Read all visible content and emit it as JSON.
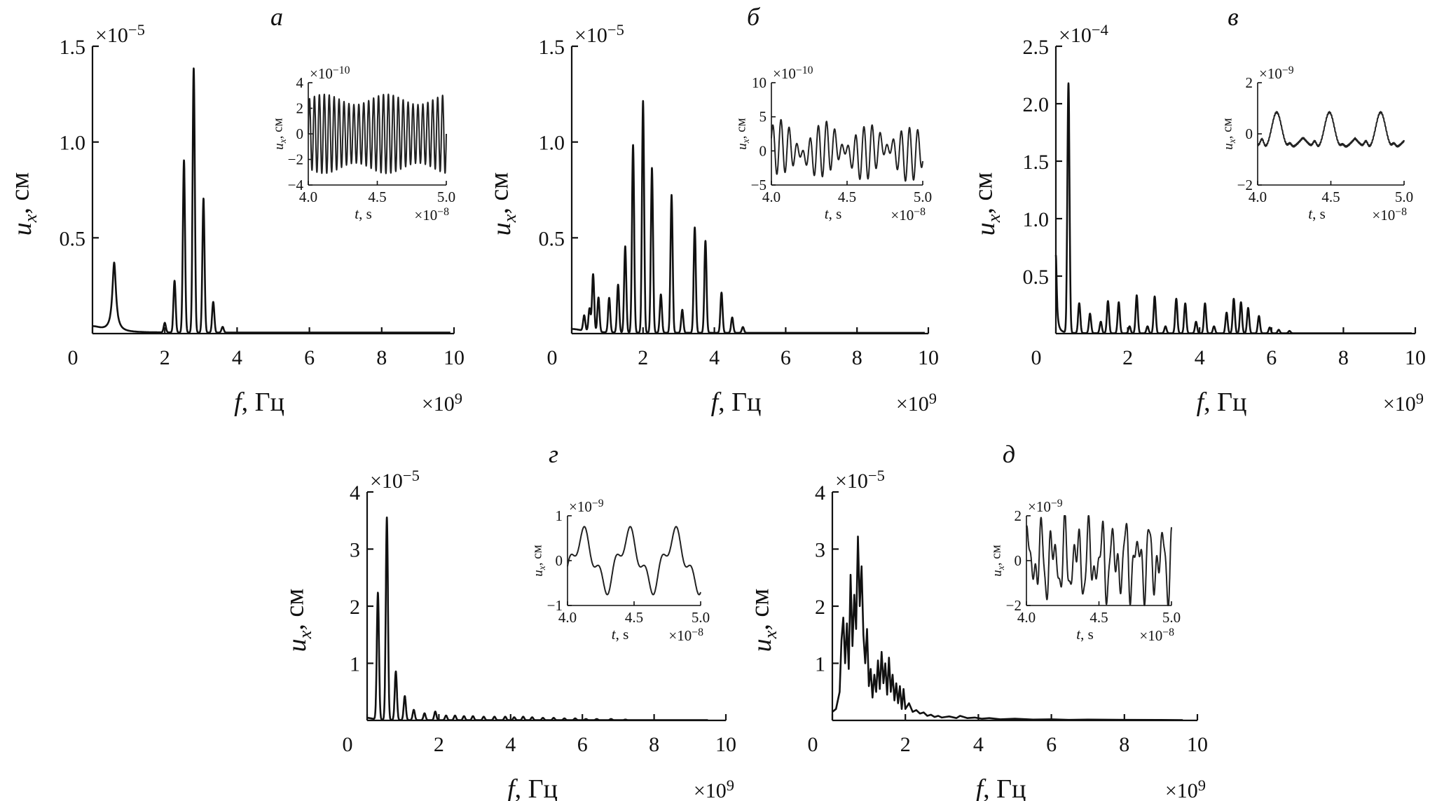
{
  "figure": {
    "description_units": "All chart values in data units (frequency in Hz, amplitude in cm, time in s)"
  },
  "chart_data": [
    {
      "id": "a",
      "type": "line",
      "panel_label": "а",
      "xlabel": "f, Гц",
      "ylabel": "u",
      "ylabel_sub": "x",
      "ylabel_unit": ", см",
      "x_multiplier": "×10",
      "x_multiplier_exp": "9",
      "y_multiplier": "×10",
      "y_multiplier_exp": "−5",
      "xlim": [
        0,
        10
      ],
      "ylim": [
        0,
        1.5
      ],
      "x_ticks": [
        0,
        2,
        4,
        6,
        8,
        10
      ],
      "x_tick_labels": [
        "0",
        "2",
        "4",
        "6",
        "8",
        "10"
      ],
      "y_ticks": [
        0.5,
        1.0,
        1.5
      ],
      "y_tick_labels": [
        "0.5",
        "1.0",
        "1.5"
      ],
      "x_end": 9.9,
      "baseline": 0.005,
      "lorentz_peaks": [
        [
          0.6,
          0.36,
          0.06
        ],
        [
          0.0,
          0.03,
          0.3
        ]
      ],
      "peaks": [
        [
          2.0,
          0.05
        ],
        [
          2.27,
          0.27
        ],
        [
          2.53,
          0.9
        ],
        [
          2.8,
          1.38
        ],
        [
          3.07,
          0.7
        ],
        [
          3.34,
          0.16
        ],
        [
          3.6,
          0.03
        ]
      ],
      "peak_width": 0.03,
      "inset": {
        "xlabel": "t",
        "xlabel_unit": ", s",
        "ylabel": "u",
        "ylabel_sub": "x",
        "ylabel_unit": ", см",
        "x_multiplier": "×10",
        "x_multiplier_exp": "−8",
        "y_multiplier": "×10",
        "y_multiplier_exp": "−10",
        "xlim": [
          4.0,
          5.0
        ],
        "ylim": [
          -4,
          4
        ],
        "x_ticks": [
          4.0,
          4.5,
          5.0
        ],
        "x_tick_labels": [
          "4.0",
          "4.5",
          "5.0"
        ],
        "y_ticks": [
          -4,
          -2,
          0,
          2,
          4
        ],
        "y_tick_labels": [
          "−4",
          "−2",
          "0",
          "2",
          "4"
        ],
        "signal": {
          "components": [
            [
              2.7,
              28,
              0.0
            ]
          ],
          "envelope": [
            0.15,
            2.2
          ]
        }
      }
    },
    {
      "id": "b",
      "type": "line",
      "panel_label": "б",
      "xlabel": "f, Гц",
      "ylabel": "u",
      "ylabel_sub": "x",
      "ylabel_unit": ", см",
      "x_multiplier": "×10",
      "x_multiplier_exp": "9",
      "y_multiplier": "×10",
      "y_multiplier_exp": "−5",
      "xlim": [
        0,
        10
      ],
      "ylim": [
        0,
        1.5
      ],
      "x_ticks": [
        0,
        2,
        4,
        6,
        8,
        10
      ],
      "x_tick_labels": [
        "0",
        "2",
        "4",
        "6",
        "8",
        "10"
      ],
      "y_ticks": [
        0.5,
        1.0,
        1.5
      ],
      "y_tick_labels": [
        "0.5",
        "1.0",
        "1.5"
      ],
      "x_end": 9.9,
      "baseline": 0.004,
      "lorentz_peaks": [
        [
          0.0,
          0.02,
          0.4
        ]
      ],
      "peaks": [
        [
          0.35,
          0.08
        ],
        [
          0.5,
          0.12
        ],
        [
          0.6,
          0.3
        ],
        [
          0.75,
          0.18
        ],
        [
          1.05,
          0.18
        ],
        [
          1.3,
          0.25
        ],
        [
          1.5,
          0.45
        ],
        [
          1.72,
          0.98
        ],
        [
          2.0,
          1.21
        ],
        [
          2.25,
          0.86
        ],
        [
          2.5,
          0.2
        ],
        [
          2.8,
          0.72
        ],
        [
          3.1,
          0.12
        ],
        [
          3.45,
          0.55
        ],
        [
          3.75,
          0.48
        ],
        [
          4.2,
          0.21
        ],
        [
          4.5,
          0.08
        ],
        [
          4.8,
          0.03
        ]
      ],
      "peak_width": 0.03,
      "inset": {
        "xlabel": "t",
        "xlabel_unit": ", s",
        "ylabel": "u",
        "ylabel_sub": "x",
        "ylabel_unit": ", см",
        "x_multiplier": "×10",
        "x_multiplier_exp": "−8",
        "y_multiplier": "×10",
        "y_multiplier_exp": "−10",
        "xlim": [
          4.0,
          5.0
        ],
        "ylim": [
          -5,
          10
        ],
        "x_ticks": [
          4.0,
          4.5,
          5.0
        ],
        "x_tick_labels": [
          "4.0",
          "4.5",
          "5.0"
        ],
        "y_ticks": [
          -5,
          0,
          5,
          10
        ],
        "y_tick_labels": [
          "−5",
          "0",
          "5",
          "10"
        ],
        "signal": {
          "components": [
            [
              2.2,
              20,
              0.0
            ],
            [
              1.8,
              16.5,
              1.2
            ],
            [
              0.6,
              3,
              0.3
            ]
          ],
          "envelope": [
            0,
            0
          ]
        }
      }
    },
    {
      "id": "c",
      "type": "line",
      "panel_label": "в",
      "xlabel": "f, Гц",
      "ylabel": "u",
      "ylabel_sub": "x",
      "ylabel_unit": ", см",
      "x_multiplier": "×10",
      "x_multiplier_exp": "9",
      "y_multiplier": "×10",
      "y_multiplier_exp": "−4",
      "xlim": [
        0,
        10
      ],
      "ylim": [
        0,
        2.5
      ],
      "x_ticks": [
        0,
        2,
        4,
        6,
        8,
        10
      ],
      "x_tick_labels": [
        "0",
        "2",
        "4",
        "6",
        "8",
        "10"
      ],
      "y_ticks": [
        0.5,
        1.0,
        1.5,
        2.0,
        2.5
      ],
      "y_tick_labels": [
        "0.5",
        "1.0",
        "1.5",
        "2.0",
        "2.5"
      ],
      "x_end": 9.9,
      "baseline": 0.003,
      "lorentz_peaks": [
        [
          0.0,
          0.68,
          0.03
        ]
      ],
      "peaks": [
        [
          0.35,
          2.17
        ],
        [
          0.65,
          0.26
        ],
        [
          0.95,
          0.17
        ],
        [
          1.25,
          0.1
        ],
        [
          1.45,
          0.28
        ],
        [
          1.75,
          0.27
        ],
        [
          2.05,
          0.06
        ],
        [
          2.25,
          0.33
        ],
        [
          2.55,
          0.06
        ],
        [
          2.75,
          0.32
        ],
        [
          3.05,
          0.06
        ],
        [
          3.35,
          0.3
        ],
        [
          3.6,
          0.26
        ],
        [
          3.9,
          0.1
        ],
        [
          4.15,
          0.26
        ],
        [
          4.4,
          0.06
        ],
        [
          4.75,
          0.18
        ],
        [
          4.95,
          0.3
        ],
        [
          5.15,
          0.27
        ],
        [
          5.35,
          0.22
        ],
        [
          5.65,
          0.15
        ],
        [
          5.95,
          0.05
        ],
        [
          6.2,
          0.03
        ],
        [
          6.5,
          0.02
        ]
      ],
      "peak_width": 0.03,
      "inset": {
        "xlabel": "t",
        "xlabel_unit": ", s",
        "ylabel": "u",
        "ylabel_sub": "x",
        "ylabel_unit": ", см",
        "x_multiplier": "×10",
        "x_multiplier_exp": "−8",
        "y_multiplier": "×10",
        "y_multiplier_exp": "−9",
        "xlim": [
          4.0,
          5.0
        ],
        "ylim": [
          -2,
          2
        ],
        "x_ticks": [
          4.0,
          4.5,
          5.0
        ],
        "x_tick_labels": [
          "4.0",
          "4.5",
          "5.0"
        ],
        "y_ticks": [
          -2,
          0,
          2
        ],
        "y_tick_labels": [
          "−2",
          "0",
          "2"
        ],
        "signal": {
          "spike_period": 0.35,
          "spike_centers": [
            4.13,
            4.49,
            4.84
          ],
          "spike_height": 1.9,
          "spike_width": 0.035,
          "secondary": [
            [
              4.03,
              0.45
            ],
            [
              4.39,
              0.35
            ],
            [
              4.74,
              0.35
            ],
            [
              4.22,
              0.25
            ],
            [
              4.58,
              0.2
            ],
            [
              4.93,
              0.25
            ]
          ],
          "trough": -1.0
        }
      }
    },
    {
      "id": "d",
      "type": "line",
      "panel_label": "г",
      "xlabel": "f, Гц",
      "ylabel": "u",
      "ylabel_sub": "x",
      "ylabel_unit": ", см",
      "x_multiplier": "×10",
      "x_multiplier_exp": "9",
      "y_multiplier": "×10",
      "y_multiplier_exp": "−5",
      "xlim": [
        0,
        10
      ],
      "ylim": [
        0,
        4
      ],
      "x_ticks": [
        0,
        2,
        4,
        6,
        8,
        10
      ],
      "x_tick_labels": [
        "0",
        "2",
        "4",
        "6",
        "8",
        "10"
      ],
      "y_ticks": [
        1,
        2,
        3,
        4
      ],
      "y_tick_labels": [
        "1",
        "2",
        "3",
        "4"
      ],
      "x_end": 9.5,
      "baseline": 0.005,
      "lorentz_peaks": [
        [
          0.0,
          0.04,
          0.2
        ]
      ],
      "peaks": [
        [
          0.3,
          2.22
        ],
        [
          0.55,
          3.55
        ],
        [
          0.8,
          0.85
        ],
        [
          1.05,
          0.42
        ],
        [
          1.3,
          0.18
        ],
        [
          1.6,
          0.12
        ],
        [
          1.9,
          0.15
        ],
        [
          2.2,
          0.08
        ],
        [
          2.45,
          0.08
        ],
        [
          2.7,
          0.07
        ],
        [
          2.95,
          0.07
        ],
        [
          3.25,
          0.06
        ],
        [
          3.55,
          0.06
        ],
        [
          3.85,
          0.06
        ],
        [
          4.1,
          0.05
        ],
        [
          4.35,
          0.06
        ],
        [
          4.6,
          0.05
        ],
        [
          4.9,
          0.04
        ],
        [
          5.2,
          0.04
        ],
        [
          5.5,
          0.03
        ],
        [
          5.8,
          0.03
        ],
        [
          6.1,
          0.02
        ],
        [
          6.4,
          0.02
        ],
        [
          6.8,
          0.02
        ],
        [
          7.2,
          0.01
        ]
      ],
      "peak_width": 0.03,
      "inset": {
        "xlabel": "t",
        "xlabel_unit": ", s",
        "ylabel": "u",
        "ylabel_sub": "x",
        "ylabel_unit": ", см",
        "x_multiplier": "×10",
        "x_multiplier_exp": "−8",
        "y_multiplier": "×10",
        "y_multiplier_exp": "−9",
        "xlim": [
          4.0,
          5.0
        ],
        "ylim": [
          -1,
          1
        ],
        "x_ticks": [
          4.0,
          4.5,
          5.0
        ],
        "x_tick_labels": [
          "4.0",
          "4.5",
          "5.0"
        ],
        "y_ticks": [
          -1,
          0,
          1
        ],
        "y_tick_labels": [
          "−1",
          "0",
          "1"
        ],
        "signal": {
          "components": [
            [
              0.55,
              2.9,
              -0.55
            ],
            [
              0.22,
              8.7,
              0.8
            ]
          ],
          "envelope": [
            0,
            0
          ]
        }
      }
    },
    {
      "id": "e",
      "type": "line",
      "panel_label": "д",
      "xlabel": "f, Гц",
      "ylabel": "u",
      "ylabel_sub": "x",
      "ylabel_unit": ", см",
      "x_multiplier": "×10",
      "x_multiplier_exp": "9",
      "y_multiplier": "×10",
      "y_multiplier_exp": "−5",
      "xlim": [
        0,
        10
      ],
      "ylim": [
        0,
        4
      ],
      "x_ticks": [
        0,
        2,
        4,
        6,
        8,
        10
      ],
      "x_tick_labels": [
        "0",
        "2",
        "4",
        "6",
        "8",
        "10"
      ],
      "y_ticks": [
        1,
        2,
        3,
        4
      ],
      "y_tick_labels": [
        "1",
        "2",
        "3",
        "4"
      ],
      "x_end": 9.6,
      "noise_spectrum": {
        "points": [
          [
            0,
            0.15
          ],
          [
            0.1,
            0.2
          ],
          [
            0.2,
            0.5
          ],
          [
            0.25,
            1.4
          ],
          [
            0.3,
            1.8
          ],
          [
            0.35,
            1.0
          ],
          [
            0.4,
            1.7
          ],
          [
            0.45,
            0.9
          ],
          [
            0.5,
            2.55
          ],
          [
            0.55,
            1.3
          ],
          [
            0.6,
            2.2
          ],
          [
            0.65,
            1.6
          ],
          [
            0.7,
            3.22
          ],
          [
            0.75,
            2.0
          ],
          [
            0.8,
            2.7
          ],
          [
            0.85,
            1.5
          ],
          [
            0.9,
            1.0
          ],
          [
            0.95,
            1.6
          ],
          [
            1.0,
            0.6
          ],
          [
            1.05,
            0.9
          ],
          [
            1.1,
            0.4
          ],
          [
            1.15,
            0.8
          ],
          [
            1.2,
            0.5
          ],
          [
            1.25,
            1.05
          ],
          [
            1.3,
            0.55
          ],
          [
            1.35,
            1.2
          ],
          [
            1.4,
            0.65
          ],
          [
            1.45,
            1.0
          ],
          [
            1.5,
            0.45
          ],
          [
            1.55,
            1.1
          ],
          [
            1.6,
            0.5
          ],
          [
            1.65,
            0.8
          ],
          [
            1.7,
            0.35
          ],
          [
            1.75,
            0.65
          ],
          [
            1.8,
            0.3
          ],
          [
            1.85,
            0.6
          ],
          [
            1.9,
            0.2
          ],
          [
            1.95,
            0.55
          ],
          [
            2.0,
            0.2
          ],
          [
            2.1,
            0.3
          ],
          [
            2.2,
            0.15
          ],
          [
            2.3,
            0.18
          ],
          [
            2.4,
            0.12
          ],
          [
            2.5,
            0.14
          ],
          [
            2.6,
            0.08
          ],
          [
            2.7,
            0.1
          ],
          [
            2.8,
            0.06
          ],
          [
            2.9,
            0.08
          ],
          [
            3.0,
            0.05
          ],
          [
            3.2,
            0.07
          ],
          [
            3.4,
            0.04
          ],
          [
            3.5,
            0.08
          ],
          [
            3.7,
            0.04
          ],
          [
            3.9,
            0.05
          ],
          [
            4.1,
            0.03
          ],
          [
            4.3,
            0.04
          ],
          [
            4.6,
            0.02
          ],
          [
            5.0,
            0.03
          ],
          [
            5.5,
            0.015
          ],
          [
            6.0,
            0.02
          ],
          [
            6.5,
            0.01
          ],
          [
            7.0,
            0.015
          ],
          [
            8.0,
            0.01
          ],
          [
            9.0,
            0.008
          ],
          [
            9.6,
            0.006
          ]
        ]
      },
      "inset": {
        "xlabel": "t",
        "xlabel_unit": ", s",
        "ylabel": "u",
        "ylabel_sub": "x",
        "ylabel_unit": ", см",
        "x_multiplier": "×10",
        "x_multiplier_exp": "−8",
        "y_multiplier": "×10",
        "y_multiplier_exp": "−9",
        "xlim": [
          4.0,
          5.0
        ],
        "ylim": [
          -2,
          2
        ],
        "x_ticks": [
          4.0,
          4.5,
          5.0
        ],
        "x_tick_labels": [
          "4.0",
          "4.5",
          "5.0"
        ],
        "y_ticks": [
          -2,
          0,
          2
        ],
        "y_tick_labels": [
          "−2",
          "0",
          "2"
        ],
        "signal": {
          "components": [
            [
              1.1,
              12.0,
              0.4
            ],
            [
              0.7,
              19.0,
              1.3
            ],
            [
              0.45,
              30.0,
              2.1
            ]
          ],
          "envelope": [
            0,
            0
          ]
        }
      }
    }
  ]
}
